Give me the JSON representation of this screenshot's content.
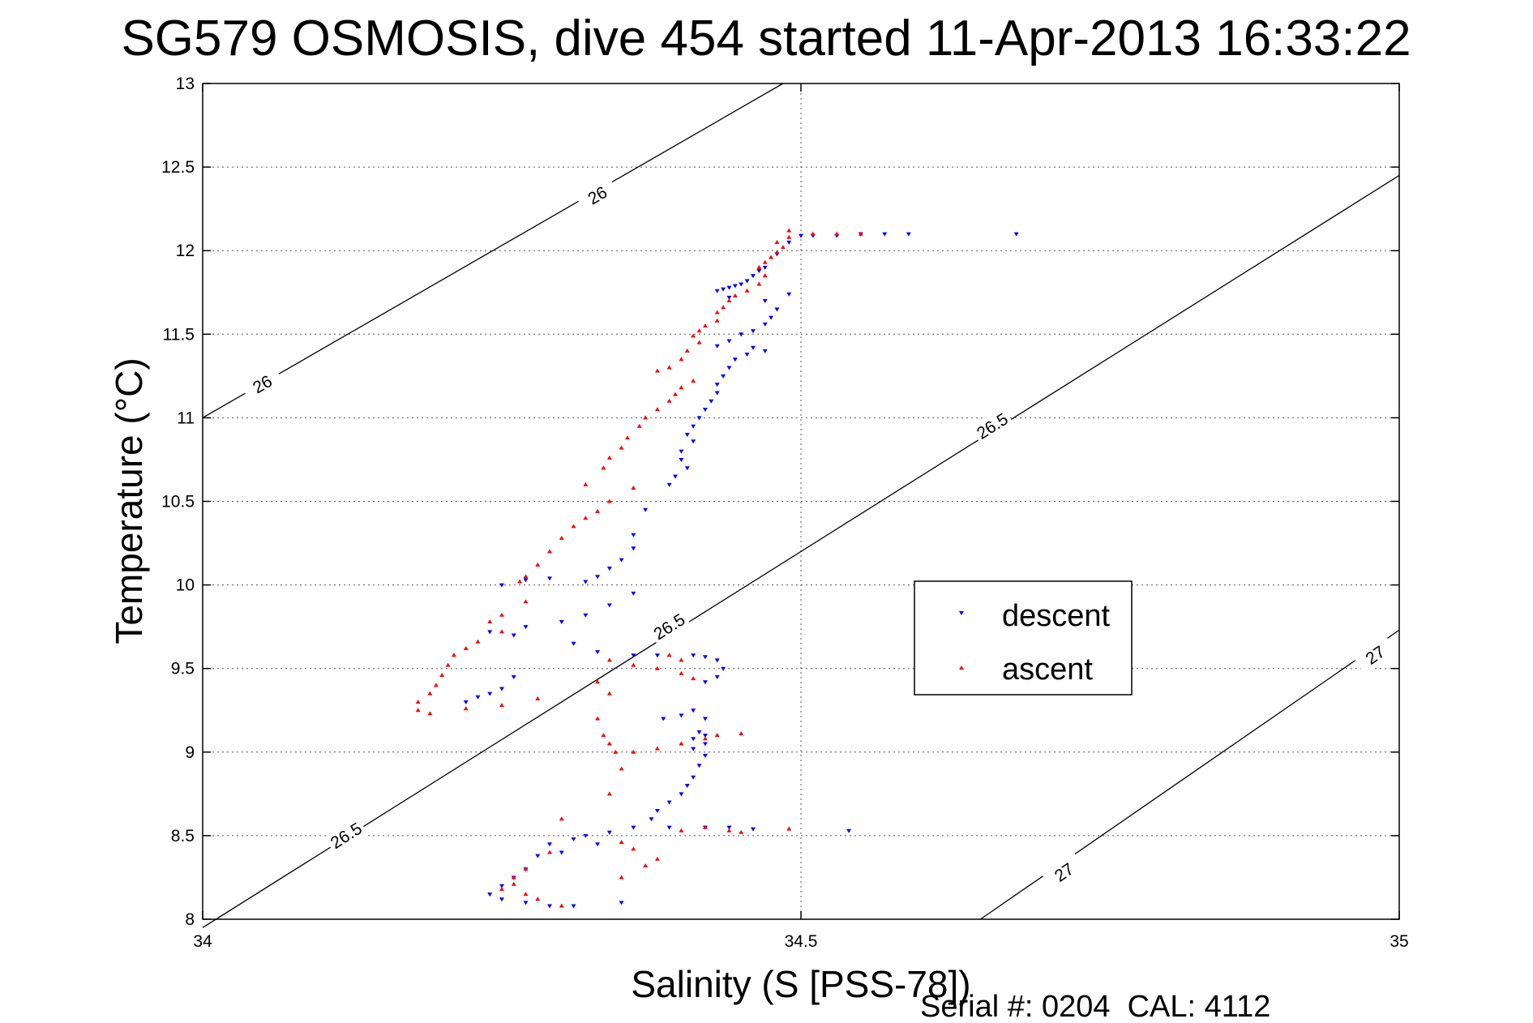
{
  "chart_data": {
    "type": "scatter",
    "title": "SG579 OSMOSIS, dive 454 started 11-Apr-2013 16:33:22",
    "xlabel": "Salinity (S [PSS-78])",
    "ylabel": "Temperature (°C)",
    "xlim": [
      34,
      35
    ],
    "ylim": [
      8,
      13
    ],
    "xticks": [
      "34",
      "34.5",
      "35"
    ],
    "yticks": [
      "8",
      "8.5",
      "9",
      "9.5",
      "10",
      "10.5",
      "11",
      "11.5",
      "12",
      "12.5",
      "13"
    ],
    "grid": true,
    "legend": {
      "placement": "right-middle",
      "entries": [
        "descent",
        "ascent"
      ]
    },
    "colors": {
      "descent": "#0000ff",
      "ascent": "#ff0000",
      "contour": "#000000"
    },
    "footer": "Serial #: 0204  CAL: 4112",
    "density_contours": [
      {
        "label": "26",
        "points": [
          [
            34.0,
            11.0
          ],
          [
            34.485,
            13.0
          ]
        ],
        "label_positions": [
          [
            34.05,
            11.2
          ],
          [
            34.33,
            12.33
          ]
        ]
      },
      {
        "label": "26.5",
        "points": [
          [
            34.0,
            7.95
          ],
          [
            35.0,
            12.45
          ]
        ],
        "label_positions": [
          [
            34.12,
            8.5
          ],
          [
            34.39,
            9.75
          ],
          [
            34.66,
            10.95
          ],
          [
            35.92,
            12.2
          ]
        ]
      },
      {
        "label": "27",
        "points": [
          [
            34.65,
            8.0
          ],
          [
            35.0,
            9.73
          ]
        ],
        "label_positions": [
          [
            34.72,
            8.28
          ],
          [
            34.98,
            9.58
          ]
        ]
      }
    ],
    "series": [
      {
        "name": "descent",
        "marker": "triangle-down",
        "points": [
          [
            34.68,
            12.1
          ],
          [
            34.59,
            12.1
          ],
          [
            34.57,
            12.1
          ],
          [
            34.55,
            12.1
          ],
          [
            34.53,
            12.09
          ],
          [
            34.51,
            12.09
          ],
          [
            34.5,
            12.09
          ],
          [
            34.49,
            12.05
          ],
          [
            34.48,
            11.98
          ],
          [
            34.47,
            11.9
          ],
          [
            34.465,
            11.88
          ],
          [
            34.46,
            11.85
          ],
          [
            34.455,
            11.82
          ],
          [
            34.45,
            11.8
          ],
          [
            34.445,
            11.79
          ],
          [
            34.44,
            11.78
          ],
          [
            34.435,
            11.77
          ],
          [
            34.43,
            11.76
          ],
          [
            34.44,
            11.72
          ],
          [
            34.47,
            11.7
          ],
          [
            34.49,
            11.74
          ],
          [
            34.48,
            11.65
          ],
          [
            34.475,
            11.6
          ],
          [
            34.47,
            11.56
          ],
          [
            34.46,
            11.52
          ],
          [
            34.45,
            11.5
          ],
          [
            34.44,
            11.46
          ],
          [
            34.43,
            11.43
          ],
          [
            34.46,
            11.42
          ],
          [
            34.47,
            11.4
          ],
          [
            34.455,
            11.38
          ],
          [
            34.445,
            11.35
          ],
          [
            34.44,
            11.3
          ],
          [
            34.435,
            11.25
          ],
          [
            34.43,
            11.2
          ],
          [
            34.43,
            11.15
          ],
          [
            34.425,
            11.1
          ],
          [
            34.42,
            11.05
          ],
          [
            34.415,
            11.0
          ],
          [
            34.41,
            10.95
          ],
          [
            34.405,
            10.9
          ],
          [
            34.41,
            10.86
          ],
          [
            34.4,
            10.8
          ],
          [
            34.4,
            10.75
          ],
          [
            34.405,
            10.7
          ],
          [
            34.395,
            10.65
          ],
          [
            34.39,
            10.6
          ],
          [
            34.37,
            10.45
          ],
          [
            34.36,
            10.3
          ],
          [
            34.36,
            10.22
          ],
          [
            34.35,
            10.15
          ],
          [
            34.34,
            10.1
          ],
          [
            34.33,
            10.05
          ],
          [
            34.32,
            10.02
          ],
          [
            34.29,
            10.04
          ],
          [
            34.27,
            10.03
          ],
          [
            34.25,
            10.0
          ],
          [
            34.36,
            9.95
          ],
          [
            34.34,
            9.88
          ],
          [
            34.32,
            9.82
          ],
          [
            34.3,
            9.78
          ],
          [
            34.27,
            9.75
          ],
          [
            34.26,
            9.7
          ],
          [
            34.24,
            9.72
          ],
          [
            34.31,
            9.65
          ],
          [
            34.33,
            9.6
          ],
          [
            34.36,
            9.58
          ],
          [
            34.38,
            9.58
          ],
          [
            34.41,
            9.58
          ],
          [
            34.42,
            9.57
          ],
          [
            34.43,
            9.55
          ],
          [
            34.435,
            9.5
          ],
          [
            34.43,
            9.45
          ],
          [
            34.42,
            9.42
          ],
          [
            34.26,
            9.45
          ],
          [
            34.25,
            9.38
          ],
          [
            34.24,
            9.35
          ],
          [
            34.23,
            9.33
          ],
          [
            34.22,
            9.3
          ],
          [
            34.385,
            9.2
          ],
          [
            34.4,
            9.22
          ],
          [
            34.41,
            9.25
          ],
          [
            34.42,
            9.2
          ],
          [
            34.415,
            9.12
          ],
          [
            34.42,
            9.1
          ],
          [
            34.41,
            9.08
          ],
          [
            34.42,
            9.05
          ],
          [
            34.41,
            9.02
          ],
          [
            34.42,
            8.98
          ],
          [
            34.415,
            8.92
          ],
          [
            34.41,
            8.85
          ],
          [
            34.405,
            8.8
          ],
          [
            34.4,
            8.75
          ],
          [
            34.39,
            8.7
          ],
          [
            34.38,
            8.65
          ],
          [
            34.375,
            8.6
          ],
          [
            34.36,
            8.55
          ],
          [
            34.39,
            8.55
          ],
          [
            34.42,
            8.55
          ],
          [
            34.44,
            8.55
          ],
          [
            34.46,
            8.54
          ],
          [
            34.54,
            8.53
          ],
          [
            34.34,
            8.52
          ],
          [
            34.32,
            8.5
          ],
          [
            34.31,
            8.48
          ],
          [
            34.33,
            8.45
          ],
          [
            34.29,
            8.45
          ],
          [
            34.3,
            8.4
          ],
          [
            34.28,
            8.38
          ],
          [
            34.27,
            8.3
          ],
          [
            34.26,
            8.25
          ],
          [
            34.25,
            8.2
          ],
          [
            34.24,
            8.15
          ],
          [
            34.25,
            8.12
          ],
          [
            34.27,
            8.1
          ],
          [
            34.29,
            8.08
          ],
          [
            34.31,
            8.08
          ],
          [
            34.35,
            8.1
          ]
        ]
      },
      {
        "name": "ascent",
        "marker": "triangle-up",
        "points": [
          [
            34.55,
            12.1
          ],
          [
            34.53,
            12.1
          ],
          [
            34.51,
            12.1
          ],
          [
            34.49,
            12.12
          ],
          [
            34.49,
            12.08
          ],
          [
            34.48,
            12.05
          ],
          [
            34.485,
            12.02
          ],
          [
            34.48,
            11.99
          ],
          [
            34.475,
            11.96
          ],
          [
            34.47,
            11.93
          ],
          [
            34.465,
            11.9
          ],
          [
            34.47,
            11.85
          ],
          [
            34.465,
            11.8
          ],
          [
            34.455,
            11.76
          ],
          [
            34.445,
            11.73
          ],
          [
            34.44,
            11.7
          ],
          [
            34.435,
            11.66
          ],
          [
            34.43,
            11.63
          ],
          [
            34.43,
            11.58
          ],
          [
            34.42,
            11.55
          ],
          [
            34.415,
            11.52
          ],
          [
            34.41,
            11.49
          ],
          [
            34.415,
            11.45
          ],
          [
            34.405,
            11.4
          ],
          [
            34.4,
            11.35
          ],
          [
            34.39,
            11.3
          ],
          [
            34.38,
            11.28
          ],
          [
            34.41,
            11.22
          ],
          [
            34.4,
            11.18
          ],
          [
            34.395,
            11.14
          ],
          [
            34.39,
            11.1
          ],
          [
            34.38,
            11.05
          ],
          [
            34.37,
            11.0
          ],
          [
            34.365,
            10.95
          ],
          [
            34.355,
            10.88
          ],
          [
            34.35,
            10.82
          ],
          [
            34.34,
            10.76
          ],
          [
            34.335,
            10.7
          ],
          [
            34.32,
            10.6
          ],
          [
            34.36,
            10.58
          ],
          [
            34.34,
            10.5
          ],
          [
            34.33,
            10.44
          ],
          [
            34.32,
            10.4
          ],
          [
            34.31,
            10.35
          ],
          [
            34.3,
            10.28
          ],
          [
            34.29,
            10.2
          ],
          [
            34.28,
            10.12
          ],
          [
            34.27,
            10.05
          ],
          [
            34.265,
            10.02
          ],
          [
            34.27,
            9.9
          ],
          [
            34.25,
            9.82
          ],
          [
            34.24,
            9.78
          ],
          [
            34.25,
            9.72
          ],
          [
            34.23,
            9.66
          ],
          [
            34.22,
            9.62
          ],
          [
            34.21,
            9.58
          ],
          [
            34.205,
            9.52
          ],
          [
            34.2,
            9.46
          ],
          [
            34.195,
            9.4
          ],
          [
            34.19,
            9.35
          ],
          [
            34.18,
            9.3
          ],
          [
            34.18,
            9.25
          ],
          [
            34.19,
            9.23
          ],
          [
            34.22,
            9.26
          ],
          [
            34.25,
            9.28
          ],
          [
            34.28,
            9.32
          ],
          [
            34.34,
            9.55
          ],
          [
            34.36,
            9.52
          ],
          [
            34.38,
            9.5
          ],
          [
            34.4,
            9.47
          ],
          [
            34.41,
            9.44
          ],
          [
            34.39,
            9.58
          ],
          [
            34.4,
            9.55
          ],
          [
            34.33,
            9.42
          ],
          [
            34.34,
            9.35
          ],
          [
            34.33,
            9.2
          ],
          [
            34.335,
            9.1
          ],
          [
            34.34,
            9.05
          ],
          [
            34.345,
            9.0
          ],
          [
            34.36,
            9.0
          ],
          [
            34.38,
            9.02
          ],
          [
            34.4,
            9.05
          ],
          [
            34.42,
            9.08
          ],
          [
            34.43,
            9.1
          ],
          [
            34.45,
            9.11
          ],
          [
            34.35,
            8.9
          ],
          [
            34.34,
            8.75
          ],
          [
            34.3,
            8.6
          ],
          [
            34.29,
            8.4
          ],
          [
            34.27,
            8.3
          ],
          [
            34.26,
            8.25
          ],
          [
            34.27,
            8.15
          ],
          [
            34.28,
            8.12
          ],
          [
            34.3,
            8.08
          ],
          [
            34.25,
            8.18
          ],
          [
            34.26,
            8.21
          ],
          [
            34.4,
            8.53
          ],
          [
            34.42,
            8.55
          ],
          [
            34.44,
            8.53
          ],
          [
            34.45,
            8.52
          ],
          [
            34.49,
            8.54
          ],
          [
            34.35,
            8.46
          ],
          [
            34.36,
            8.42
          ],
          [
            34.38,
            8.36
          ],
          [
            34.37,
            8.32
          ],
          [
            34.35,
            8.25
          ]
        ]
      }
    ]
  }
}
